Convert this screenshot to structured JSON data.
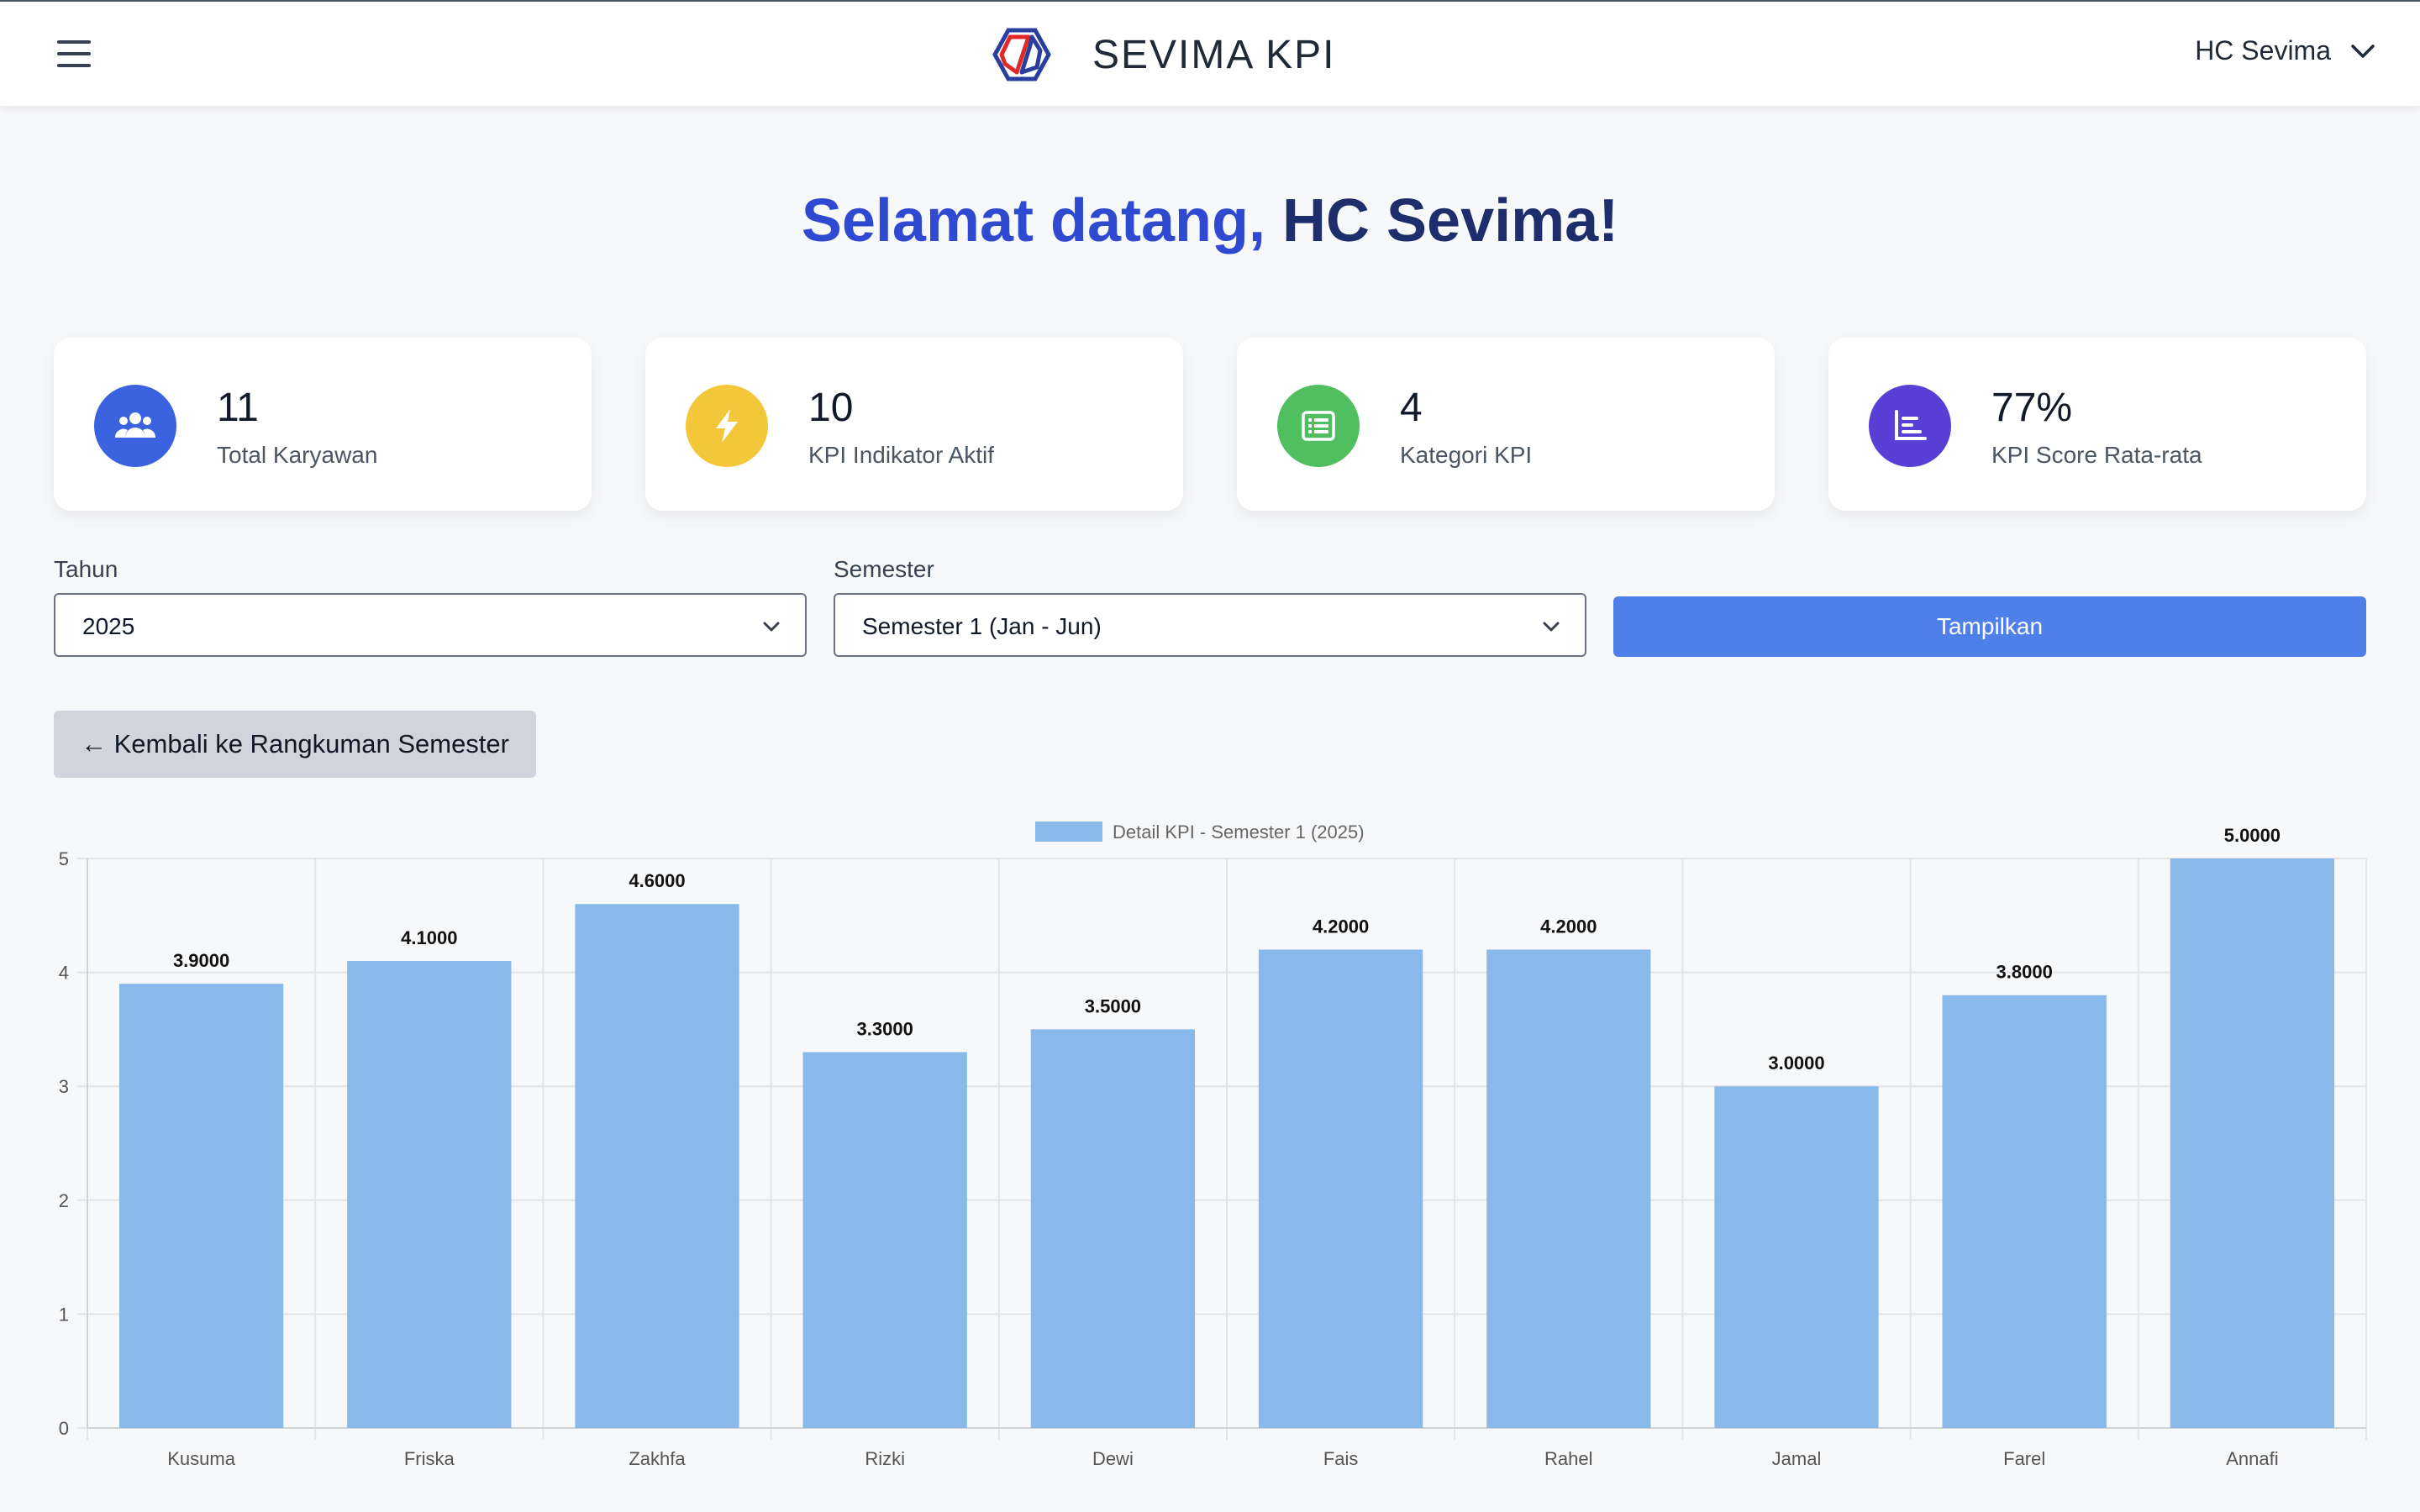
{
  "header": {
    "brand": "SEVIMA KPI",
    "user": "HC Sevima"
  },
  "welcome": {
    "part1": "Selamat datang,",
    "part2": "HC Sevima!"
  },
  "stats": [
    {
      "value": "11",
      "label": "Total Karyawan",
      "icon": "users-icon",
      "color": "#3b63df"
    },
    {
      "value": "10",
      "label": "KPI Indikator Aktif",
      "icon": "bolt-icon",
      "color": "#f4c73b"
    },
    {
      "value": "4",
      "label": "Kategori KPI",
      "icon": "table-list-icon",
      "color": "#4fbf5f"
    },
    {
      "value": "77%",
      "label": "KPI Score Rata-rata",
      "icon": "chart-icon",
      "color": "#5a3fd6"
    }
  ],
  "filters": {
    "year_label": "Tahun",
    "year_value": "2025",
    "semester_label": "Semester",
    "semester_value": "Semester 1 (Jan - Jun)",
    "submit_label": "Tampilkan"
  },
  "back_button": "← Kembali ke Rangkuman Semester",
  "chart_data": {
    "type": "bar",
    "categories": [
      "Kusuma",
      "Friska",
      "Zakhfa",
      "Rizki",
      "Dewi",
      "Fais",
      "Rahel",
      "Jamal",
      "Farel",
      "Annafi"
    ],
    "series": [
      {
        "name": "Detail KPI - Semester 1 (2025)",
        "values": [
          3.9,
          4.1,
          4.6,
          3.3,
          3.5,
          4.2,
          4.2,
          3.0,
          3.8,
          5.0
        ]
      }
    ],
    "data_labels": [
      "3.9000",
      "4.1000",
      "4.6000",
      "3.3000",
      "3.5000",
      "4.2000",
      "4.2000",
      "3.0000",
      "3.8000",
      "5.0000"
    ],
    "ylim": [
      0,
      5
    ],
    "yticks": [
      "0",
      "1",
      "2",
      "3",
      "4",
      "5"
    ],
    "grid": true,
    "legend_position": "top",
    "bar_color": "#88b9ea"
  }
}
